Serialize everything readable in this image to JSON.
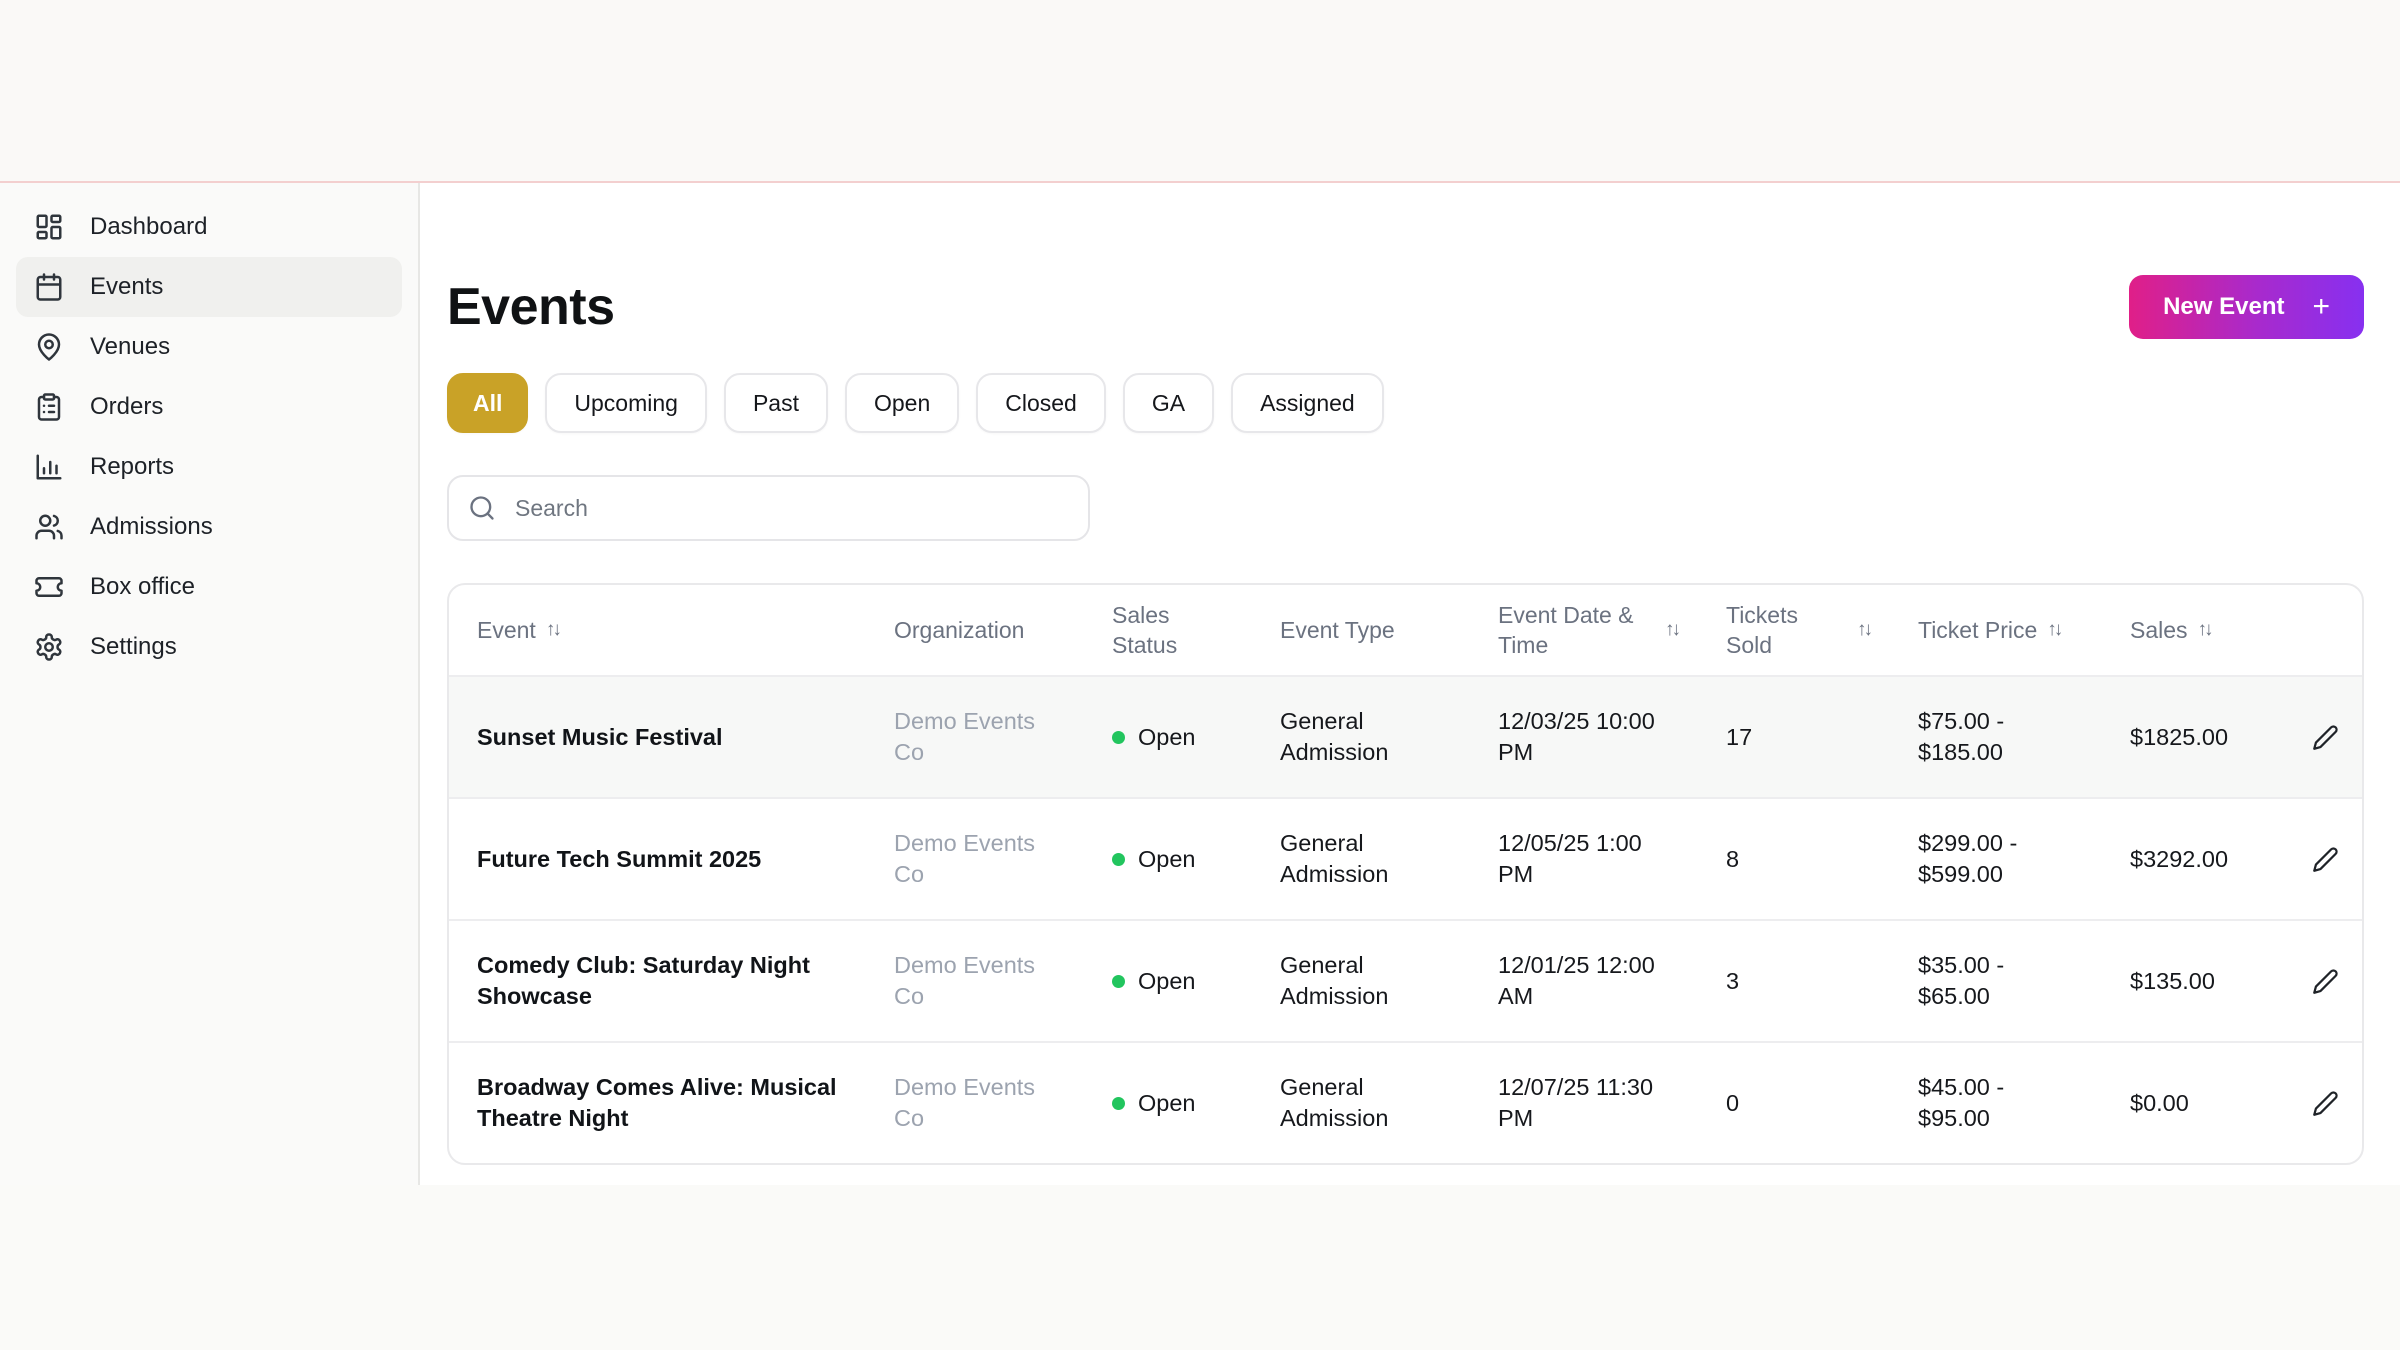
{
  "app": {
    "top_border_color": "#F3CFCF",
    "accent_gold": "#C9A227",
    "button_gradient_from": "#E01F88",
    "button_gradient_to": "#8730F0",
    "status_open_color": "#22C55E"
  },
  "sidebar": {
    "items": [
      {
        "label": "Dashboard",
        "icon": "dashboard-icon",
        "active": false
      },
      {
        "label": "Events",
        "icon": "calendar-icon",
        "active": true
      },
      {
        "label": "Venues",
        "icon": "map-pin-icon",
        "active": false
      },
      {
        "label": "Orders",
        "icon": "clipboard-list-icon",
        "active": false
      },
      {
        "label": "Reports",
        "icon": "bar-chart-icon",
        "active": false
      },
      {
        "label": "Admissions",
        "icon": "users-icon",
        "active": false
      },
      {
        "label": "Box office",
        "icon": "ticket-icon",
        "active": false
      },
      {
        "label": "Settings",
        "icon": "gear-icon",
        "active": false
      }
    ]
  },
  "header": {
    "title": "Events",
    "new_event_label": "New Event",
    "new_event_plus": "+"
  },
  "filters": [
    {
      "label": "All",
      "active": true
    },
    {
      "label": "Upcoming",
      "active": false
    },
    {
      "label": "Past",
      "active": false
    },
    {
      "label": "Open",
      "active": false
    },
    {
      "label": "Closed",
      "active": false
    },
    {
      "label": "GA",
      "active": false
    },
    {
      "label": "Assigned",
      "active": false
    }
  ],
  "search": {
    "placeholder": "Search"
  },
  "table": {
    "columns": [
      {
        "label": "Event",
        "sortable": true
      },
      {
        "label": "Organization",
        "sortable": false
      },
      {
        "label": "Sales Status",
        "sortable": false
      },
      {
        "label": "Event Type",
        "sortable": false
      },
      {
        "label": "Event Date & Time",
        "sortable": true
      },
      {
        "label": "Tickets Sold",
        "sortable": true
      },
      {
        "label": "Ticket Price",
        "sortable": true
      },
      {
        "label": "Sales",
        "sortable": true
      }
    ],
    "rows": [
      {
        "event": "Sunset Music Festival",
        "organization": "Demo Events Co",
        "sales_status": "Open",
        "event_type": "General Admission",
        "date": "12/03/25 10:00 PM",
        "tickets_sold": "17",
        "ticket_price": "$75.00 - $185.00",
        "sales": "$1825.00",
        "highlighted": true
      },
      {
        "event": "Future Tech Summit 2025",
        "organization": "Demo Events Co",
        "sales_status": "Open",
        "event_type": "General Admission",
        "date": "12/05/25 1:00 PM",
        "tickets_sold": "8",
        "ticket_price": "$299.00 - $599.00",
        "sales": "$3292.00",
        "highlighted": false
      },
      {
        "event": "Comedy Club: Saturday Night Showcase",
        "organization": "Demo Events Co",
        "sales_status": "Open",
        "event_type": "General Admission",
        "date": "12/01/25 12:00 AM",
        "tickets_sold": "3",
        "ticket_price": "$35.00 - $65.00",
        "sales": "$135.00",
        "highlighted": false
      },
      {
        "event": "Broadway Comes Alive: Musical Theatre Night",
        "organization": "Demo Events Co",
        "sales_status": "Open",
        "event_type": "General Admission",
        "date": "12/07/25 11:30 PM",
        "tickets_sold": "0",
        "ticket_price": "$45.00 - $95.00",
        "sales": "$0.00",
        "highlighted": false
      }
    ]
  }
}
